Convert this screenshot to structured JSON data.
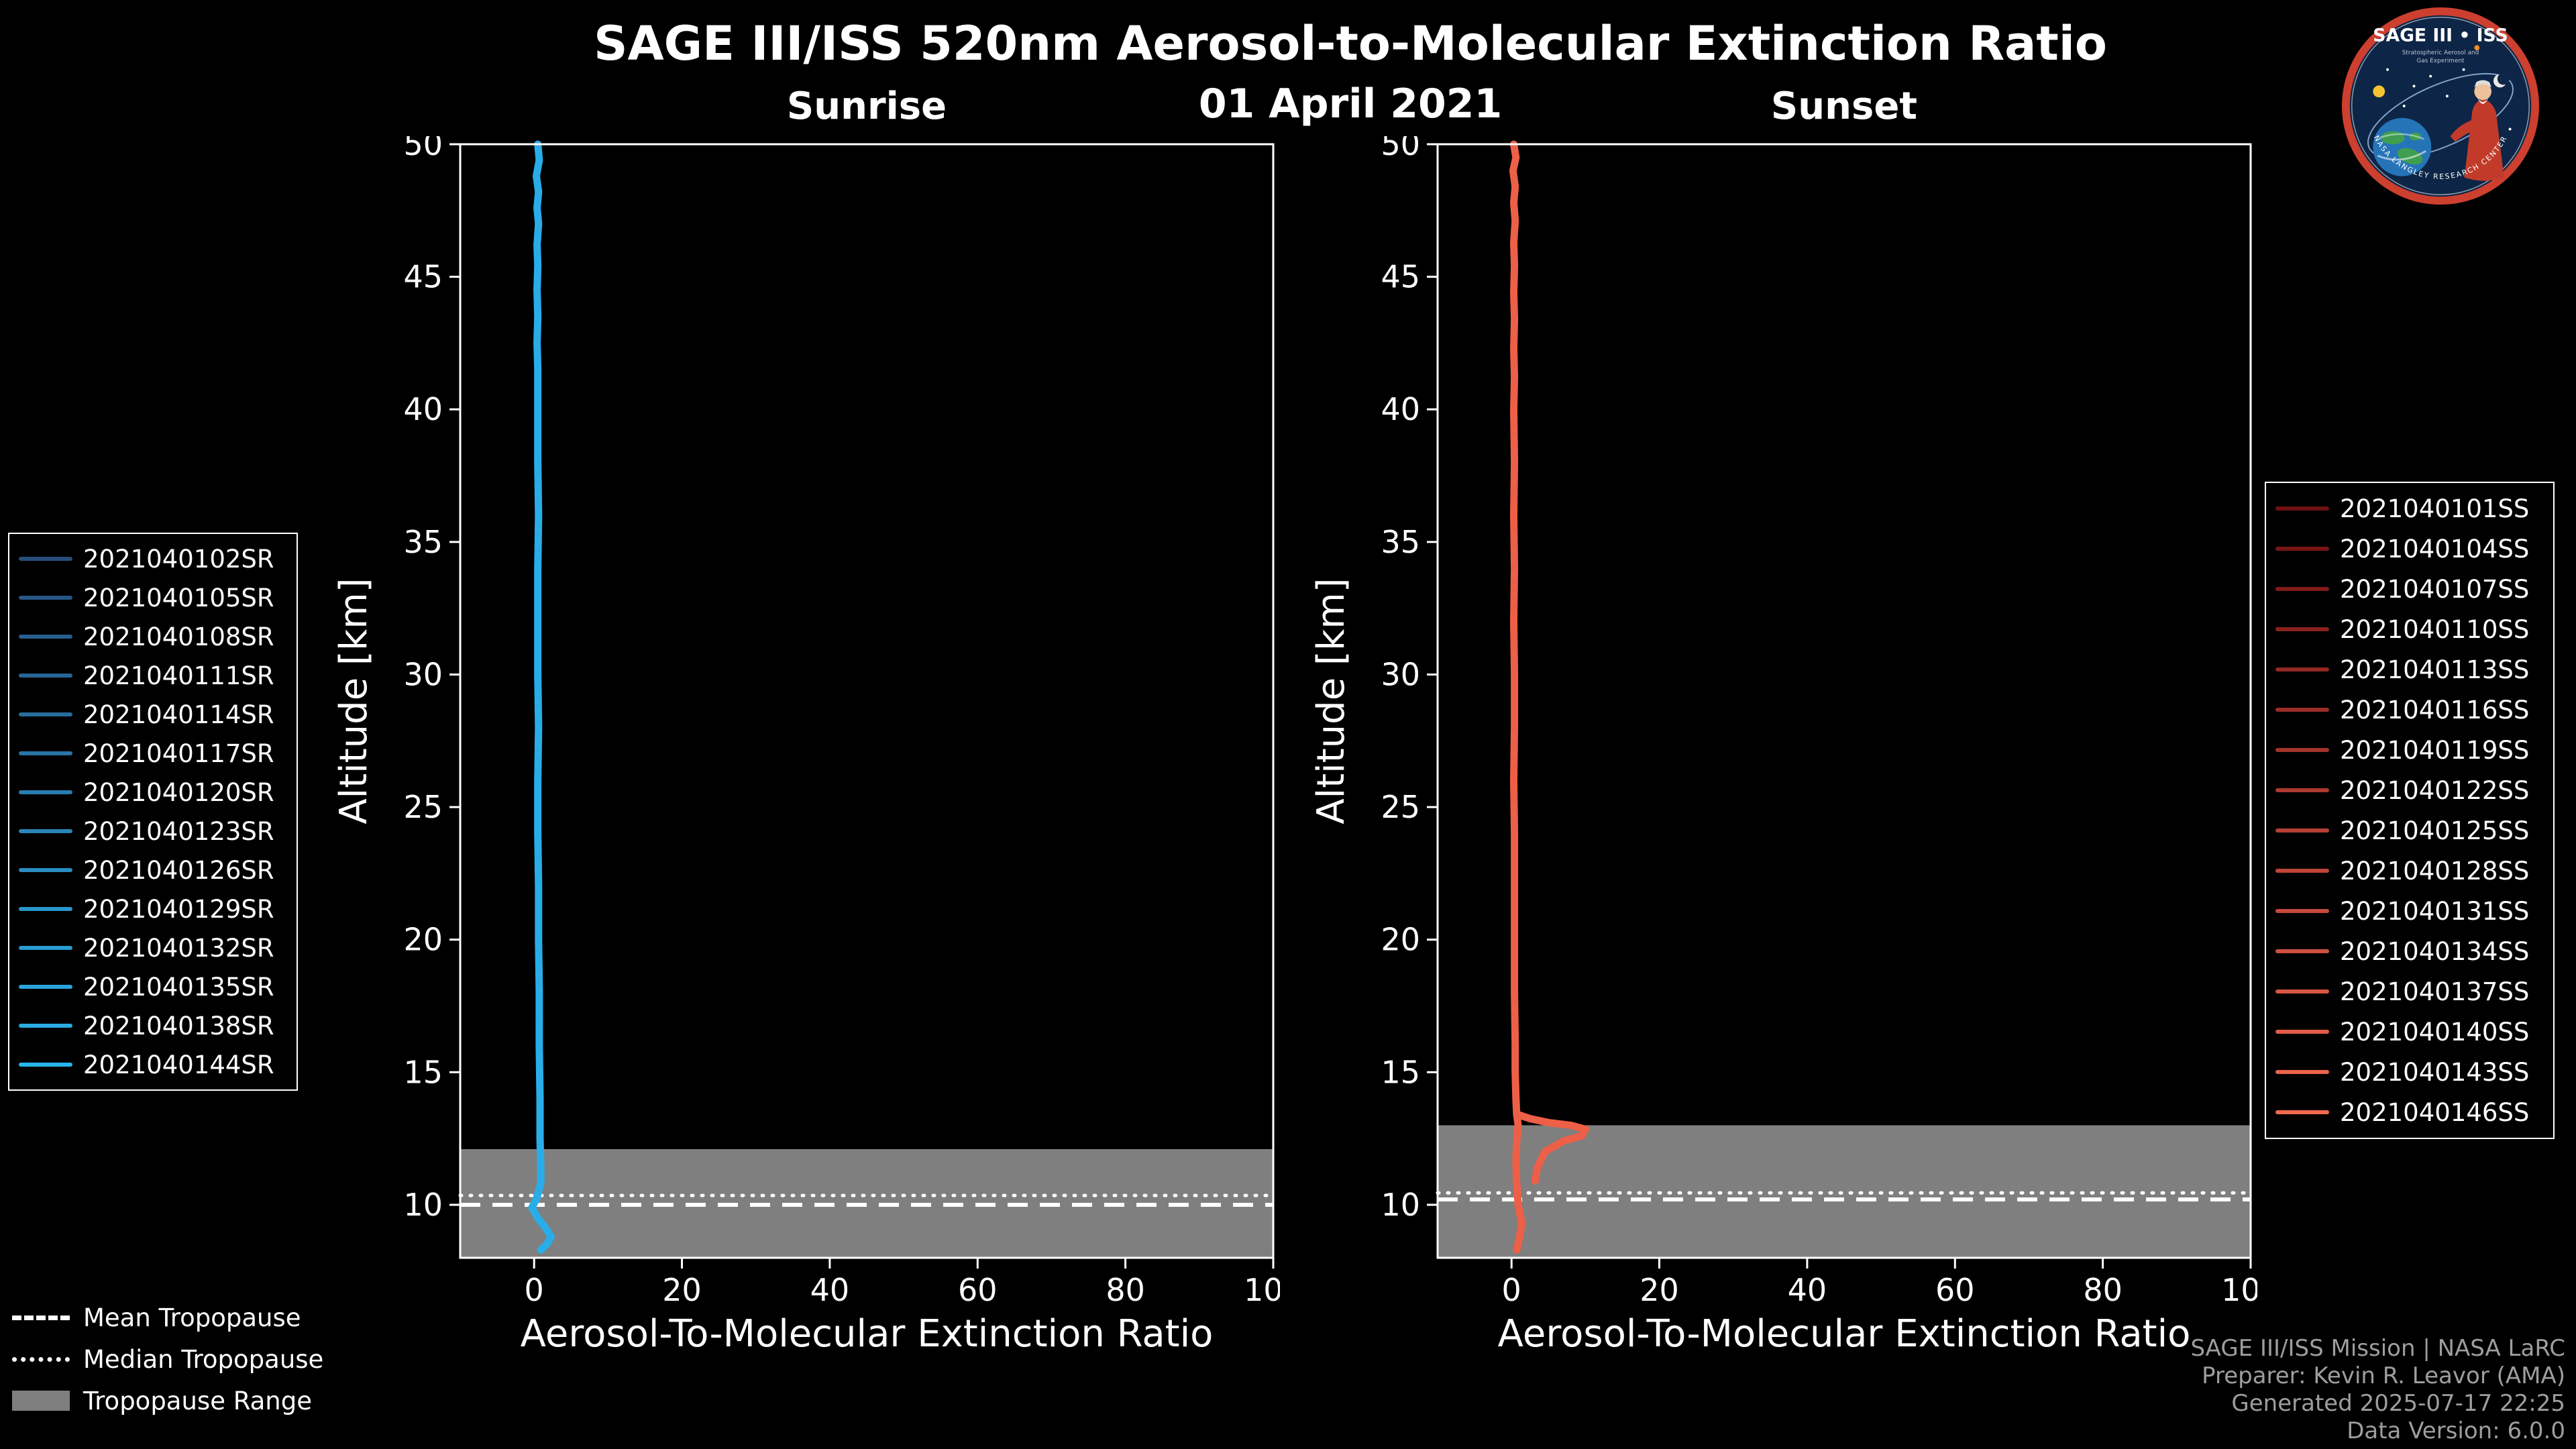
{
  "title": "SAGE III/ISS 520nm Aerosol-to-Molecular Extinction Ratio",
  "date_label": "01 April 2021",
  "colors": {
    "background": "#000000",
    "axis": "#ffffff",
    "tropopause_band": "#7f7f7f",
    "tropopause_lines": "#ffffff",
    "sunrise_line": "#29ade8",
    "sunset_line": "#ee5f47",
    "credits_text": "#9e9e9e"
  },
  "chart_data": [
    {
      "type": "line",
      "title": "Sunrise",
      "xlabel": "Aerosol-To-Molecular Extinction Ratio",
      "ylabel": "Altitude [km]",
      "xlim": [
        -10,
        100
      ],
      "ylim": [
        8,
        50
      ],
      "xticks": [
        0,
        20,
        40,
        60,
        80,
        100
      ],
      "yticks": [
        10,
        15,
        20,
        25,
        30,
        35,
        40,
        45,
        50
      ],
      "grid": false,
      "line_color": "#29ade8",
      "tropopause": {
        "mean": 10.0,
        "median": 10.35,
        "range": [
          8,
          12.1
        ]
      },
      "note": "14 sunrise profiles overlap into a single near-vertical bundle at ratio ~0.5; points are (ratio, altitude_km)",
      "profiles": [
        {
          "name": "bundle",
          "points": [
            [
              0.5,
              50
            ],
            [
              0.7,
              49.4
            ],
            [
              0.3,
              48.8
            ],
            [
              0.6,
              48.2
            ],
            [
              0.4,
              47.6
            ],
            [
              0.6,
              47.0
            ],
            [
              0.4,
              46.2
            ],
            [
              0.5,
              45.4
            ],
            [
              0.4,
              44.5
            ],
            [
              0.5,
              43.5
            ],
            [
              0.4,
              42.5
            ],
            [
              0.5,
              41.5
            ],
            [
              0.5,
              40
            ],
            [
              0.5,
              38
            ],
            [
              0.6,
              36
            ],
            [
              0.5,
              34
            ],
            [
              0.5,
              32
            ],
            [
              0.5,
              30
            ],
            [
              0.6,
              28
            ],
            [
              0.5,
              26
            ],
            [
              0.5,
              24
            ],
            [
              0.6,
              22
            ],
            [
              0.6,
              20
            ],
            [
              0.7,
              18
            ],
            [
              0.7,
              16
            ],
            [
              0.8,
              14
            ],
            [
              0.8,
              12.5
            ],
            [
              0.9,
              11.5
            ],
            [
              0.9,
              10.8
            ],
            [
              0.3,
              10.2
            ],
            [
              -0.3,
              9.9
            ],
            [
              0.5,
              9.5
            ],
            [
              1.6,
              9.1
            ],
            [
              2.3,
              8.8
            ],
            [
              1.7,
              8.5
            ],
            [
              0.9,
              8.3
            ]
          ]
        }
      ],
      "legend": {
        "position": "left",
        "color_start": "#274e7c",
        "color_end": "#2ab4ec",
        "entries": [
          "2021040102SR",
          "2021040105SR",
          "2021040108SR",
          "2021040111SR",
          "2021040114SR",
          "2021040117SR",
          "2021040120SR",
          "2021040123SR",
          "2021040126SR",
          "2021040129SR",
          "2021040132SR",
          "2021040135SR",
          "2021040138SR",
          "2021040144SR"
        ]
      }
    },
    {
      "type": "line",
      "title": "Sunset",
      "xlabel": "Aerosol-To-Molecular Extinction Ratio",
      "ylabel": "Altitude [km]",
      "xlim": [
        -10,
        100
      ],
      "ylim": [
        8,
        50
      ],
      "xticks": [
        0,
        20,
        40,
        60,
        80,
        100
      ],
      "yticks": [
        10,
        15,
        20,
        25,
        30,
        35,
        40,
        45,
        50
      ],
      "grid": false,
      "line_color": "#ee5f47",
      "tropopause": {
        "mean": 10.2,
        "median": 10.45,
        "range": [
          8,
          13.0
        ]
      },
      "note": "16 sunset profiles overlap at ratio ~0.4 with one outlier spur reaching ratio ~10 near 13 km; points are (ratio, altitude_km)",
      "profiles": [
        {
          "name": "spur",
          "points": [
            [
              0.9,
              13.4
            ],
            [
              2.5,
              13.25
            ],
            [
              5,
              13.1
            ],
            [
              8,
              13.0
            ],
            [
              10,
              12.85
            ],
            [
              9.5,
              12.6
            ],
            [
              7,
              12.4
            ],
            [
              4.5,
              12.0
            ],
            [
              3.5,
              11.4
            ],
            [
              3.2,
              10.9
            ]
          ]
        },
        {
          "name": "bundle",
          "points": [
            [
              0.3,
              50
            ],
            [
              0.6,
              49.5
            ],
            [
              0.2,
              49
            ],
            [
              0.5,
              48.4
            ],
            [
              0.3,
              47.8
            ],
            [
              0.5,
              47.1
            ],
            [
              0.3,
              46.3
            ],
            [
              0.4,
              45.4
            ],
            [
              0.3,
              44.4
            ],
            [
              0.4,
              43.4
            ],
            [
              0.3,
              42.3
            ],
            [
              0.4,
              41.2
            ],
            [
              0.3,
              40
            ],
            [
              0.4,
              38
            ],
            [
              0.3,
              36
            ],
            [
              0.4,
              34
            ],
            [
              0.3,
              32
            ],
            [
              0.4,
              30
            ],
            [
              0.4,
              28
            ],
            [
              0.3,
              26
            ],
            [
              0.4,
              24
            ],
            [
              0.4,
              22
            ],
            [
              0.4,
              20
            ],
            [
              0.4,
              18
            ],
            [
              0.5,
              16
            ],
            [
              0.5,
              15
            ],
            [
              0.6,
              14
            ],
            [
              0.7,
              13.4
            ],
            [
              0.9,
              13.0
            ],
            [
              0.7,
              12.4
            ],
            [
              0.6,
              11.6
            ],
            [
              0.7,
              10.8
            ],
            [
              0.9,
              10.0
            ],
            [
              1.4,
              9.3
            ],
            [
              1.1,
              8.8
            ],
            [
              0.7,
              8.3
            ]
          ]
        }
      ],
      "legend": {
        "position": "right",
        "color_start": "#6f1013",
        "color_end": "#f26850",
        "entries": [
          "2021040101SS",
          "2021040104SS",
          "2021040107SS",
          "2021040110SS",
          "2021040113SS",
          "2021040116SS",
          "2021040119SS",
          "2021040122SS",
          "2021040125SS",
          "2021040128SS",
          "2021040131SS",
          "2021040134SS",
          "2021040137SS",
          "2021040140SS",
          "2021040143SS",
          "2021040146SS"
        ]
      }
    }
  ],
  "tropopause_legend": {
    "mean_label": "Mean Tropopause",
    "median_label": "Median Tropopause",
    "range_label": "Tropopause Range"
  },
  "credits": {
    "line1": "SAGE III/ISS Mission | NASA LaRC",
    "line2": "Preparer: Kevin R. Leavor (AMA)",
    "line3": "Generated 2025-07-17 22:25",
    "line4": "Data Version: 6.0.0"
  },
  "logo": {
    "title": "SAGE III • ISS",
    "subtitle1": "Stratospheric Aerosol and",
    "subtitle2": "Gas Experiment",
    "rim_text": "NASA LANGLEY RESEARCH CENTER"
  }
}
